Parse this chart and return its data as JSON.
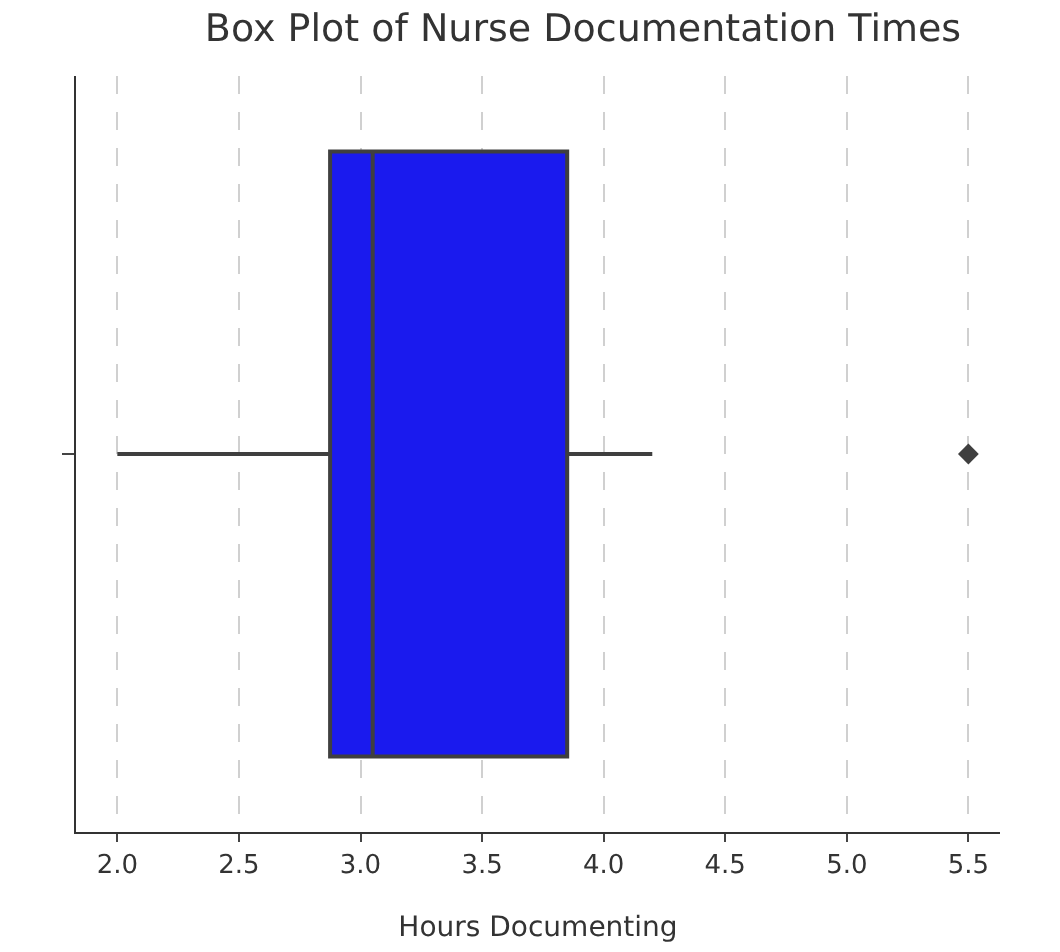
{
  "chart_data": {
    "type": "box",
    "title": "Box Plot of Nurse Documentation Times",
    "xlabel": "Hours Documenting",
    "orientation": "horizontal",
    "categories": [
      null
    ],
    "boxes": [
      {
        "low": 2.0,
        "q1": 2.875,
        "median": 3.05,
        "q3": 3.85,
        "high": 4.2,
        "outliers": [
          5.5
        ]
      }
    ],
    "color": "#1a1aee",
    "xlim": [
      1.83,
      5.63
    ],
    "xticks": [
      {
        "value": 2,
        "label": "2.0"
      },
      2.5,
      {
        "value": 3,
        "label": "3.0"
      },
      3.5,
      {
        "value": 4,
        "label": "4.0"
      },
      4.5,
      {
        "value": 5,
        "label": "5.0"
      },
      5.5
    ],
    "grid": "x",
    "marker": "diamond",
    "tick_labels": "x"
  }
}
